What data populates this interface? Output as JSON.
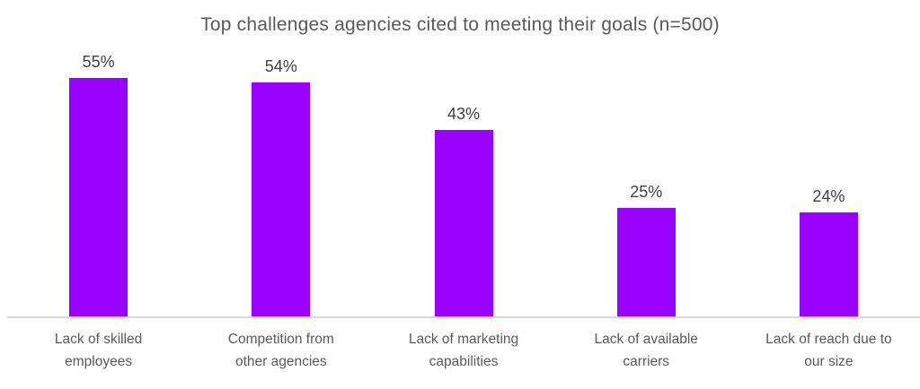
{
  "chart_data": {
    "type": "bar",
    "title": "Top challenges agencies cited to meeting their goals (n=500)",
    "categories": [
      "Lack of skilled\nemployees",
      "Competition from\nother agencies",
      "Lack of marketing\ncapabilities",
      "Lack of available\ncarriers",
      "Lack of reach due to\nour size"
    ],
    "values": [
      55,
      54,
      43,
      25,
      24
    ],
    "value_labels": [
      "55%",
      "54%",
      "43%",
      "25%",
      "24%"
    ],
    "xlabel": "",
    "ylabel": "",
    "ylim": [
      0,
      63
    ],
    "grid": false,
    "legend": "none",
    "colors": {
      "bar": "#9900FF",
      "title_text": "#595959",
      "value_label_text": "#404040",
      "category_label_text": "#595959",
      "axis_line": "#D9D9D9",
      "background": "#FFFFFF"
    }
  }
}
